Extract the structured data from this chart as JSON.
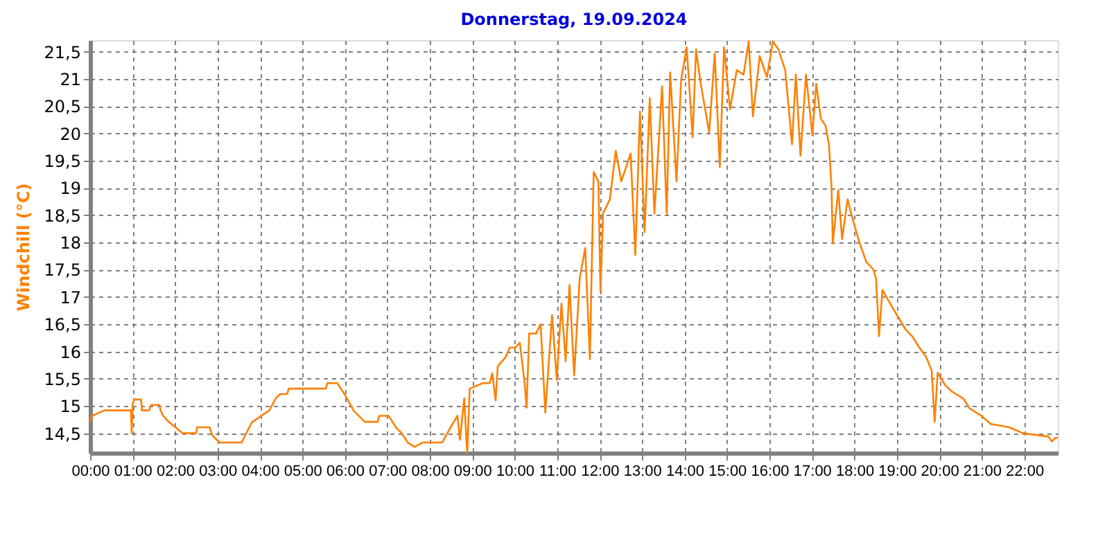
{
  "chart_data": {
    "type": "line",
    "title": "Donnerstag, 19.09.2024",
    "ylabel": "Windchill  (°C)",
    "x": [
      0,
      0.05,
      0.33,
      0.96,
      0.98,
      1.0,
      1.04,
      1.2,
      1.22,
      1.39,
      1.44,
      1.63,
      1.66,
      1.72,
      1.85,
      2.01,
      2.18,
      2.5,
      2.52,
      2.81,
      2.88,
      3.05,
      3.57,
      3.65,
      3.81,
      4.03,
      4.22,
      4.37,
      4.48,
      4.64,
      4.68,
      5.55,
      5.59,
      5.82,
      5.99,
      6.2,
      6.47,
      6.77,
      6.81,
      7.03,
      7.2,
      7.34,
      7.48,
      7.64,
      7.83,
      8.29,
      8.49,
      8.65,
      8.71,
      8.81,
      8.88,
      8.94,
      9.25,
      9.41,
      9.47,
      9.55,
      9.6,
      9.79,
      9.88,
      10.01,
      10.12,
      10.23,
      10.28,
      10.34,
      10.5,
      10.55,
      10.61,
      10.72,
      10.88,
      10.99,
      11.1,
      11.2,
      11.29,
      11.4,
      11.53,
      11.66,
      11.77,
      11.86,
      11.97,
      12.02,
      12.08,
      12.24,
      12.38,
      12.51,
      12.73,
      12.84,
      12.95,
      13.06,
      13.18,
      13.29,
      13.47,
      13.58,
      13.66,
      13.81,
      13.92,
      14.05,
      14.19,
      14.27,
      14.38,
      14.58,
      14.71,
      14.83,
      14.93,
      15.07,
      15.23,
      15.39,
      15.51,
      15.61,
      15.77,
      15.94,
      16.08,
      16.21,
      16.37,
      16.53,
      16.62,
      16.73,
      16.86,
      17.01,
      17.1,
      17.21,
      17.32,
      17.4,
      17.46,
      17.49,
      17.62,
      17.71,
      17.84,
      17.95,
      18.11,
      18.28,
      18.44,
      18.51,
      18.58,
      18.66,
      18.87,
      19.04,
      19.2,
      19.36,
      19.53,
      19.69,
      19.82,
      19.89,
      19.96,
      20.13,
      20.29,
      20.56,
      20.72,
      20.99,
      21.21,
      21.65,
      21.97,
      22.57,
      22.65,
      22.74,
      22.79
    ],
    "series": [
      {
        "color": "#ff8000",
        "values": [
          14.71,
          14.82,
          14.92,
          14.92,
          14.5,
          15.03,
          15.12,
          15.12,
          14.92,
          14.92,
          15.02,
          15.02,
          14.92,
          14.82,
          14.71,
          14.61,
          14.5,
          14.5,
          14.61,
          14.61,
          14.46,
          14.33,
          14.33,
          14.46,
          14.7,
          14.82,
          14.92,
          15.14,
          15.22,
          15.22,
          15.32,
          15.32,
          15.42,
          15.42,
          15.22,
          14.92,
          14.71,
          14.71,
          14.82,
          14.82,
          14.61,
          14.5,
          14.33,
          14.25,
          14.33,
          14.33,
          14.61,
          14.82,
          14.38,
          15.14,
          14.14,
          15.32,
          15.42,
          15.42,
          15.6,
          15.1,
          15.73,
          15.9,
          16.07,
          16.07,
          16.16,
          15.44,
          14.97,
          16.33,
          16.33,
          16.41,
          16.5,
          14.88,
          16.67,
          15.48,
          16.88,
          15.82,
          17.22,
          15.56,
          17.34,
          17.9,
          15.86,
          19.29,
          19.12,
          17.09,
          18.53,
          18.79,
          19.68,
          19.12,
          19.63,
          17.77,
          20.4,
          18.19,
          20.65,
          18.53,
          20.86,
          18.53,
          21.12,
          19.12,
          20.99,
          21.58,
          19.93,
          21.54,
          20.91,
          20.02,
          21.46,
          19.38,
          21.58,
          20.44,
          21.16,
          21.08,
          21.69,
          20.31,
          21.42,
          21.03,
          21.69,
          21.54,
          21.16,
          19.8,
          21.08,
          19.59,
          21.08,
          19.97,
          20.91,
          20.27,
          20.14,
          19.8,
          19.04,
          17.98,
          18.96,
          18.06,
          18.79,
          18.45,
          18.02,
          17.64,
          17.51,
          17.34,
          16.28,
          17.13,
          16.84,
          16.62,
          16.41,
          16.28,
          16.07,
          15.9,
          15.65,
          14.71,
          15.61,
          15.39,
          15.27,
          15.14,
          14.95,
          14.82,
          14.67,
          14.61,
          14.5,
          14.44,
          14.35,
          14.42,
          14.42
        ]
      }
    ],
    "xlim": [
      0,
      22.79
    ],
    "xticks": [
      {
        "value": 0,
        "label": "00:00"
      },
      {
        "value": 1,
        "label": "01:00"
      },
      {
        "value": 2,
        "label": "02:00"
      },
      {
        "value": 3,
        "label": "03:00"
      },
      {
        "value": 4,
        "label": "04:00"
      },
      {
        "value": 5,
        "label": "05:00"
      },
      {
        "value": 6,
        "label": "06:00"
      },
      {
        "value": 7,
        "label": "07:00"
      },
      {
        "value": 8,
        "label": "08:00"
      },
      {
        "value": 9,
        "label": "09:00"
      },
      {
        "value": 10,
        "label": "10:00"
      },
      {
        "value": 11,
        "label": "11:00"
      },
      {
        "value": 12,
        "label": "12:00"
      },
      {
        "value": 13,
        "label": "13:00"
      },
      {
        "value": 14,
        "label": "14:00"
      },
      {
        "value": 15,
        "label": "15:00"
      },
      {
        "value": 16,
        "label": "16:00"
      },
      {
        "value": 17,
        "label": "17:00"
      },
      {
        "value": 18,
        "label": "18:00"
      },
      {
        "value": 19,
        "label": "19:00"
      },
      {
        "value": 20,
        "label": "20:00"
      },
      {
        "value": 21,
        "label": "21:00"
      },
      {
        "value": 22,
        "label": "22:00"
      }
    ],
    "ylim": [
      14.14,
      21.71
    ],
    "yticks": [
      {
        "value": 14.5,
        "label": "14,5"
      },
      15,
      {
        "value": 15.5,
        "label": "15,5"
      },
      16,
      {
        "value": 16.5,
        "label": "16,5"
      },
      17,
      {
        "value": 17.5,
        "label": "17,5"
      },
      18,
      {
        "value": 18.5,
        "label": "18,5"
      },
      19,
      {
        "value": 19.5,
        "label": "19,5"
      },
      20,
      {
        "value": 20.5,
        "label": "20,5"
      },
      21,
      {
        "value": 21.5,
        "label": "21,5"
      }
    ],
    "grid": true,
    "line_style": "solid",
    "legend": false
  }
}
